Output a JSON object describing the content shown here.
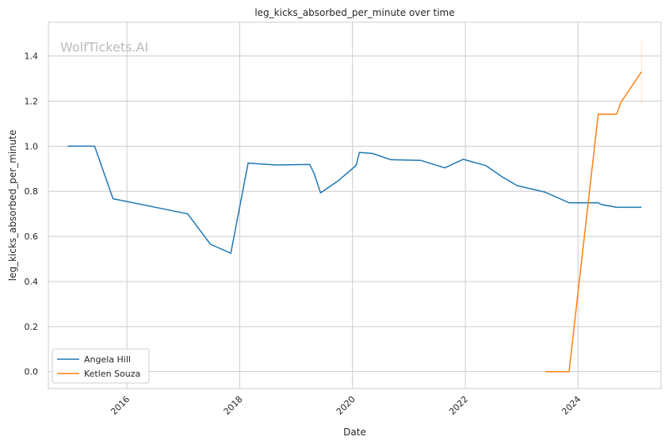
{
  "chart_data": {
    "type": "line",
    "title": "leg_kicks_absorbed_per_minute over time",
    "xlabel": "Date",
    "ylabel": "leg_kicks_absorbed_per_minute",
    "watermark": "WolfTickets.AI",
    "x_tick_labels": [
      "2016",
      "2018",
      "2020",
      "2022",
      "2024"
    ],
    "y_ticks": [
      0.0,
      0.2,
      0.4,
      0.6,
      0.8,
      1.0,
      1.2,
      1.4
    ],
    "y_tick_labels": [
      "0.0",
      "0.2",
      "0.4",
      "0.6",
      "0.8",
      "1.0",
      "1.2",
      "1.4"
    ],
    "ylim": [
      -0.075,
      1.55
    ],
    "xlim": [
      "2014-08-10",
      "2025-06-22"
    ],
    "grid": true,
    "legend_position": "lower-left",
    "series": [
      {
        "name": "Angela Hill",
        "color": "#1f77b4",
        "points": [
          {
            "x": "2014-12-13",
            "y": 1.0
          },
          {
            "x": "2015-06-06",
            "y": 1.0
          },
          {
            "x": "2015-10-03",
            "y": 0.767
          },
          {
            "x": "2017-01-28",
            "y": 0.7
          },
          {
            "x": "2017-06-25",
            "y": 0.565
          },
          {
            "x": "2017-11-04",
            "y": 0.525
          },
          {
            "x": "2018-02-24",
            "y": 0.925
          },
          {
            "x": "2018-08-25",
            "y": 0.917
          },
          {
            "x": "2019-03-30",
            "y": 0.919
          },
          {
            "x": "2019-04-27",
            "y": 0.88
          },
          {
            "x": "2019-06-08",
            "y": 0.793
          },
          {
            "x": "2019-09-28",
            "y": 0.845
          },
          {
            "x": "2020-01-25",
            "y": 0.915
          },
          {
            "x": "2020-02-15",
            "y": 0.972
          },
          {
            "x": "2020-05-09",
            "y": 0.968
          },
          {
            "x": "2020-09-05",
            "y": 0.94
          },
          {
            "x": "2021-03-20",
            "y": 0.937
          },
          {
            "x": "2021-08-21",
            "y": 0.904
          },
          {
            "x": "2021-12-18",
            "y": 0.942
          },
          {
            "x": "2022-05-14",
            "y": 0.914
          },
          {
            "x": "2022-08-27",
            "y": 0.864
          },
          {
            "x": "2022-12-03",
            "y": 0.825
          },
          {
            "x": "2023-06-03",
            "y": 0.796
          },
          {
            "x": "2023-11-04",
            "y": 0.749
          },
          {
            "x": "2024-05-11",
            "y": 0.749
          },
          {
            "x": "2024-06-01",
            "y": 0.741
          },
          {
            "x": "2024-09-07",
            "y": 0.729
          },
          {
            "x": "2025-02-15",
            "y": 0.729
          }
        ]
      },
      {
        "name": "Ketlen Souza",
        "color": "#ff7f0e",
        "points": [
          {
            "x": "2023-06-03",
            "y": 0.0
          },
          {
            "x": "2023-11-04",
            "y": 0.0
          },
          {
            "x": "2024-05-11",
            "y": 1.142
          },
          {
            "x": "2024-09-07",
            "y": 1.142
          },
          {
            "x": "2024-10-05",
            "y": 1.195
          },
          {
            "x": "2025-02-15",
            "y": 1.33
          }
        ],
        "error_band": {
          "x": "2025-02-15",
          "low": 1.19,
          "high": 1.47
        }
      }
    ]
  }
}
